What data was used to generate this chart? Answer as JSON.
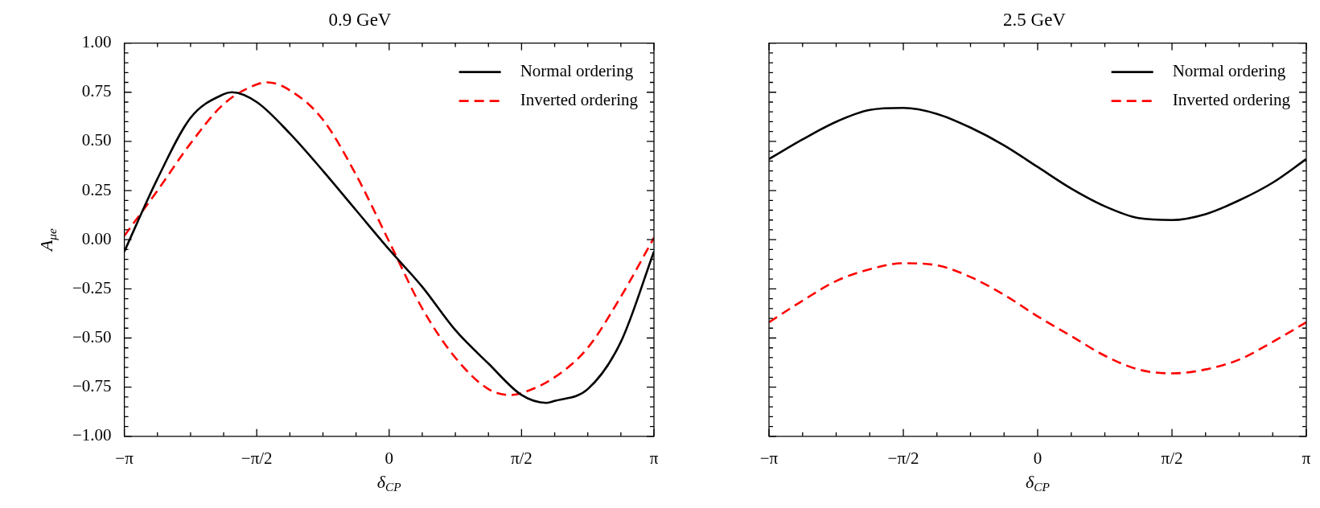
{
  "chart_data": [
    {
      "type": "line",
      "title": "0.9 GeV",
      "xlabel": "δ$_{CP}$",
      "ylabel": "A$_{μe}$",
      "xlim": [
        -3.142,
        3.142
      ],
      "xticks": [
        {
          "value": -3.142,
          "label": "−π"
        },
        {
          "value": -1.571,
          "label": "−π/2"
        },
        0,
        {
          "value": 1.571,
          "label": "π/2"
        },
        {
          "value": 3.142,
          "label": "π"
        }
      ],
      "ylim": [
        -1,
        1
      ],
      "yticks": [
        {
          "value": -1,
          "label": "−1.00"
        },
        {
          "value": -0.75,
          "label": "−0.75"
        },
        {
          "value": -0.5,
          "label": "−0.50"
        },
        {
          "value": -0.25,
          "label": "−0.25"
        },
        {
          "value": 0,
          "label": "0.00"
        },
        {
          "value": 0.25,
          "label": "0.25"
        },
        {
          "value": 0.5,
          "label": "0.50"
        },
        {
          "value": 0.75,
          "label": "0.75"
        },
        {
          "value": 1,
          "label": "1.00"
        }
      ],
      "grid": false,
      "legend": "top right",
      "marker": "none",
      "series": [
        {
          "name": "Normal ordering",
          "color": "#000000",
          "line_style": "solid",
          "x": [
            -3.142,
            -2.749,
            -2.356,
            -1.963,
            -1.866,
            -1.571,
            -1.178,
            -0.785,
            -0.393,
            0,
            0.393,
            0.785,
            1.178,
            1.571,
            1.866,
            1.963,
            2.356,
            2.749,
            3.142
          ],
          "values": [
            -0.06,
            0.31,
            0.62,
            0.74,
            0.75,
            0.7,
            0.54,
            0.35,
            0.15,
            -0.05,
            -0.24,
            -0.46,
            -0.63,
            -0.79,
            -0.83,
            -0.82,
            -0.76,
            -0.52,
            -0.06
          ]
        },
        {
          "name": "Inverted ordering",
          "color": "#ff0000",
          "line_style": "dashed",
          "x": [
            -3.142,
            -2.749,
            -2.356,
            -1.963,
            -1.571,
            -1.438,
            -1.178,
            -0.785,
            -0.393,
            0,
            0.393,
            0.785,
            1.178,
            1.438,
            1.571,
            1.963,
            2.356,
            2.749,
            3.142
          ],
          "values": [
            0.02,
            0.25,
            0.49,
            0.69,
            0.79,
            0.8,
            0.76,
            0.61,
            0.33,
            -0.01,
            -0.35,
            -0.6,
            -0.76,
            -0.79,
            -0.78,
            -0.7,
            -0.55,
            -0.29,
            0.01
          ]
        }
      ]
    },
    {
      "type": "line",
      "title": "2.5 GeV",
      "xlabel": "δ$_{CP}$",
      "xlim": [
        -3.142,
        3.142
      ],
      "xticks": [
        {
          "value": -3.142,
          "label": "−π"
        },
        {
          "value": -1.571,
          "label": "−π/2"
        },
        0,
        {
          "value": 1.571,
          "label": "π/2"
        },
        {
          "value": 3.142,
          "label": "π"
        }
      ],
      "ylim": [
        -1,
        1
      ],
      "yticks": [
        -1,
        -0.75,
        -0.5,
        -0.25,
        0,
        0.25,
        0.5,
        0.75,
        1
      ],
      "tick_labels": "x",
      "grid": false,
      "legend": "top right",
      "marker": "none",
      "series": [
        {
          "name": "Normal ordering",
          "color": "#000000",
          "line_style": "solid",
          "x": [
            -3.142,
            -2.749,
            -2.356,
            -1.963,
            -1.571,
            -1.178,
            -0.785,
            -0.393,
            0,
            0.393,
            0.785,
            1.178,
            1.571,
            1.963,
            2.356,
            2.749,
            3.142
          ],
          "values": [
            0.41,
            0.51,
            0.6,
            0.66,
            0.67,
            0.64,
            0.57,
            0.48,
            0.37,
            0.26,
            0.17,
            0.11,
            0.1,
            0.13,
            0.2,
            0.29,
            0.41
          ]
        },
        {
          "name": "Inverted ordering",
          "color": "#ff0000",
          "line_style": "dashed",
          "x": [
            -3.142,
            -2.749,
            -2.356,
            -1.963,
            -1.571,
            -1.178,
            -0.785,
            -0.393,
            0,
            0.393,
            0.785,
            1.178,
            1.571,
            1.963,
            2.356,
            2.749,
            3.142
          ],
          "values": [
            -0.42,
            -0.31,
            -0.21,
            -0.15,
            -0.12,
            -0.13,
            -0.19,
            -0.28,
            -0.39,
            -0.49,
            -0.59,
            -0.66,
            -0.68,
            -0.66,
            -0.61,
            -0.52,
            -0.42
          ]
        }
      ]
    }
  ]
}
